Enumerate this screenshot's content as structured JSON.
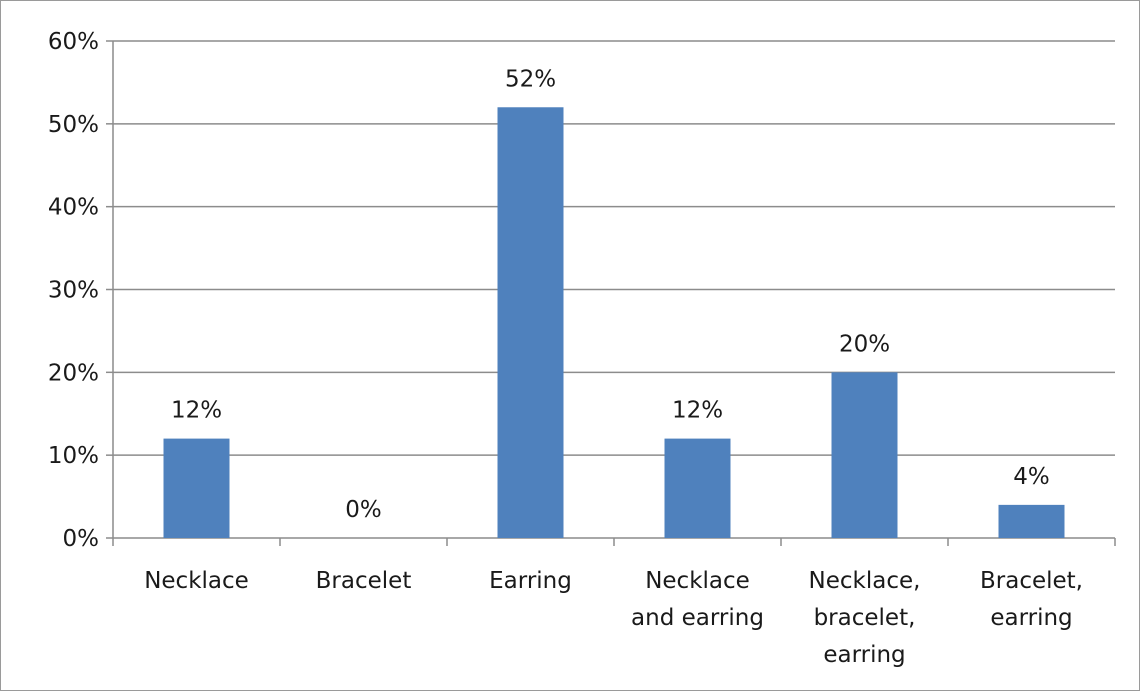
{
  "chart_data": {
    "type": "bar",
    "categories": [
      [
        "Necklace"
      ],
      [
        "Bracelet"
      ],
      [
        "Earring"
      ],
      [
        "Necklace",
        "and earring"
      ],
      [
        "Necklace,",
        "bracelet,",
        "earring"
      ],
      [
        "Bracelet,",
        "earring"
      ]
    ],
    "values": [
      12,
      0,
      52,
      12,
      20,
      4
    ],
    "data_labels": [
      "12%",
      "0%",
      "52%",
      "12%",
      "20%",
      "4%"
    ],
    "y_ticks": [
      "0%",
      "10%",
      "20%",
      "30%",
      "40%",
      "50%",
      "60%"
    ],
    "y_tick_values": [
      0,
      10,
      20,
      30,
      40,
      50,
      60
    ],
    "ylim": [
      0,
      60
    ],
    "title": "",
    "xlabel": "",
    "ylabel": "",
    "grid": true,
    "legend": "none",
    "colors": {
      "bar": "#4f81bd",
      "grid": "#8c8c8c",
      "axis": "#8c8c8c",
      "frame": "#9a9a9a"
    }
  }
}
